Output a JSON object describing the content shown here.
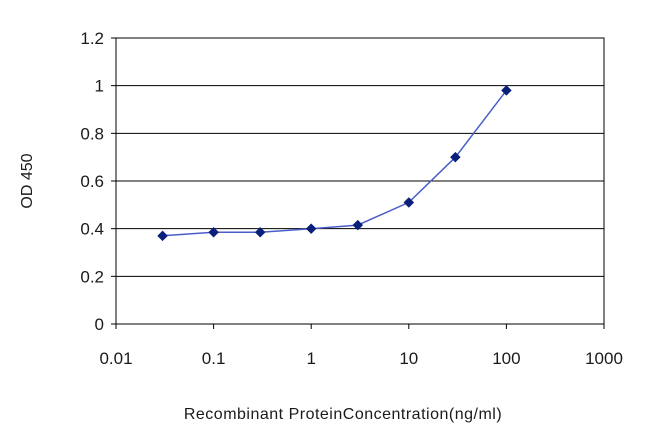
{
  "chart_data": {
    "type": "line",
    "title": "",
    "xlabel": "Recombinant ProteinConcentration(ng/ml)",
    "ylabel": "OD 450",
    "x_scale": "log",
    "xlim": [
      0.01,
      1000
    ],
    "ylim": [
      0,
      1.2
    ],
    "x_ticks": [
      0.01,
      0.1,
      1,
      10,
      100,
      1000
    ],
    "x_tick_labels": [
      "0.01",
      "0.1",
      "1",
      "10",
      "100",
      "1000"
    ],
    "y_ticks": [
      0,
      0.2,
      0.4,
      0.6,
      0.8,
      1,
      1.2
    ],
    "y_tick_labels": [
      "0",
      "0.2",
      "0.4",
      "0.6",
      "0.8",
      "1",
      "1.2"
    ],
    "grid": "horizontal",
    "legend": "none",
    "colors": {
      "series": "#0a1f7a",
      "line": "#4a5ec9",
      "plot_background": "#ffffff",
      "grid": "#000000"
    },
    "series": [
      {
        "x": [
          0.03,
          0.1,
          0.3,
          1,
          3,
          10,
          30,
          100
        ],
        "y": [
          0.37,
          0.385,
          0.385,
          0.4,
          0.415,
          0.51,
          0.7,
          0.98
        ]
      }
    ]
  }
}
